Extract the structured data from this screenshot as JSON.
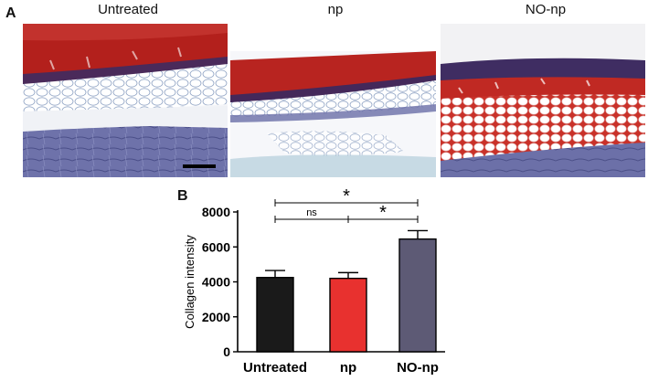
{
  "panel_a": {
    "label": "A",
    "images": [
      {
        "title": "Untreated"
      },
      {
        "title": "np"
      },
      {
        "title": "NO-np"
      }
    ]
  },
  "panel_b": {
    "label": "B"
  },
  "colors": {
    "Untreated": "#1a1a1a",
    "np": "#e8312f",
    "NO-np": "#5d5a75",
    "stain_red": "#b3201c",
    "stain_blue": "#6a6ea8"
  },
  "chart_data": {
    "type": "bar",
    "categories": [
      "Untreated",
      "np",
      "NO-np"
    ],
    "values": [
      4250,
      4200,
      6450
    ],
    "errors": [
      400,
      330,
      480
    ],
    "ylabel": "Collagen intensity",
    "xlabel": "",
    "ylim": [
      0,
      8000
    ],
    "yticks": [
      0,
      2000,
      4000,
      6000,
      8000
    ],
    "significance": [
      {
        "from": "Untreated",
        "to": "NO-np",
        "label": "*"
      },
      {
        "from": "Untreated",
        "to": "np",
        "label": "ns"
      },
      {
        "from": "np",
        "to": "NO-np",
        "label": "*"
      }
    ]
  }
}
